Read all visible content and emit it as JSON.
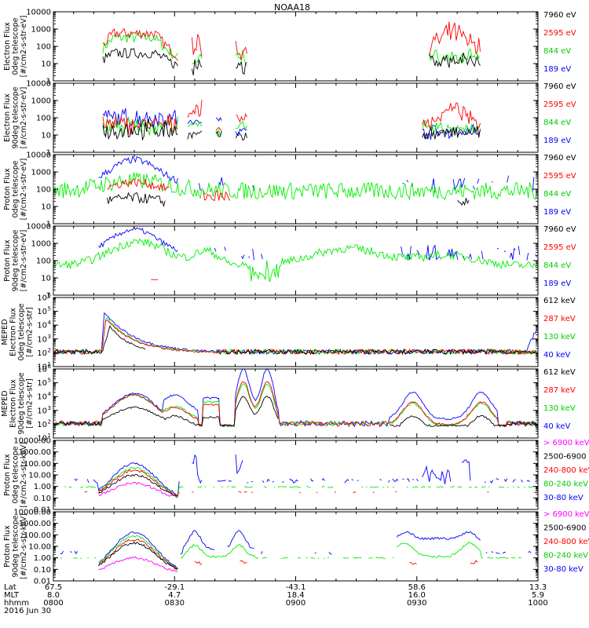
{
  "title": "NOAA18",
  "x_axis": {
    "rows": [
      {
        "label": "Lat",
        "values": [
          "67.5",
          "-29.1",
          "-43.1",
          "58.6",
          "13.3"
        ]
      },
      {
        "label": "MLT",
        "values": [
          "8.0",
          "4.7",
          "18.4",
          "16.0",
          "5.9"
        ]
      },
      {
        "label": "hhmm",
        "values": [
          "0800",
          "0830",
          "0900",
          "0930",
          "1000"
        ]
      }
    ],
    "date": "2016 Jun 30",
    "time_range_minutes": [
      0,
      120
    ],
    "major_ticks_minutes": [
      0,
      30,
      60,
      90,
      120
    ]
  },
  "colors": {
    "black": "#000000",
    "red": "#ff0000",
    "green": "#00ee00",
    "blue": "#0000ff",
    "magenta": "#ff00ff",
    "label_green": "#00cc00"
  },
  "chart_data": [
    {
      "type": "line",
      "ylabel": [
        "Electron Flux",
        "0deg telescope",
        "[#/cm2-s-str-eV]"
      ],
      "scale": "log",
      "ylim": [
        1,
        10000
      ],
      "ytick_labels": [
        "1",
        "10",
        "100",
        "1000",
        "10000"
      ],
      "legend_position": "right",
      "series": [
        {
          "name": "7960 eV",
          "color": "#000000"
        },
        {
          "name": "2595 eV",
          "color": "#ff0000"
        },
        {
          "name": "844 eV",
          "color": "#00ee00"
        },
        {
          "name": "189 eV",
          "color": "#0000ff"
        }
      ]
    },
    {
      "type": "line",
      "ylabel": [
        "Electron Flux",
        "90deg telescope",
        "[#/cm2-s-str-eV]"
      ],
      "scale": "log",
      "ylim": [
        1,
        10000
      ],
      "ytick_labels": [
        "1",
        "10",
        "100",
        "1000",
        "10000"
      ],
      "legend_position": "right",
      "series": [
        {
          "name": "7960 eV",
          "color": "#000000"
        },
        {
          "name": "2595 eV",
          "color": "#ff0000"
        },
        {
          "name": "844 eV",
          "color": "#00ee00"
        },
        {
          "name": "189 eV",
          "color": "#0000ff"
        }
      ]
    },
    {
      "type": "line",
      "ylabel": [
        "Proton Flux",
        "0deg telescope",
        "[#/cm2-s-str-eV]"
      ],
      "scale": "log",
      "ylim": [
        1,
        10000
      ],
      "ytick_labels": [
        "1",
        "10",
        "100",
        "1000",
        "10000"
      ],
      "legend_position": "right",
      "series": [
        {
          "name": "7960 eV",
          "color": "#000000"
        },
        {
          "name": "2595 eV",
          "color": "#ff0000"
        },
        {
          "name": "844 eV",
          "color": "#00ee00"
        },
        {
          "name": "189 eV",
          "color": "#0000ff"
        }
      ]
    },
    {
      "type": "line",
      "ylabel": [
        "Proton Flux",
        "90deg telescope",
        "[#/cm2-s-str-eV]"
      ],
      "scale": "log",
      "ylim": [
        1,
        10000
      ],
      "ytick_labels": [
        "1",
        "10",
        "100",
        "1000",
        "10000"
      ],
      "legend_position": "right",
      "series": [
        {
          "name": "7960 eV",
          "color": "#000000"
        },
        {
          "name": "2595 eV",
          "color": "#ff0000"
        },
        {
          "name": "844 eV",
          "color": "#00ee00"
        },
        {
          "name": "189 eV",
          "color": "#0000ff"
        }
      ]
    },
    {
      "type": "line",
      "ylabel": [
        "MEPED",
        "Electron Flux",
        "0deg telescope",
        "[#/cm2-s-str]"
      ],
      "scale": "log",
      "ylim": [
        10,
        1000000
      ],
      "ytick_labels": [
        "10",
        "10",
        "10",
        "10",
        "10",
        "10"
      ],
      "ytick_exponents": [
        "1",
        "2",
        "3",
        "4",
        "5",
        "6"
      ],
      "legend_position": "right",
      "series": [
        {
          "name": "612 keV",
          "color": "#000000"
        },
        {
          "name": "287 keV",
          "color": "#ff0000"
        },
        {
          "name": "130 keV",
          "color": "#00ee00"
        },
        {
          "name": "40 keV",
          "color": "#0000ff"
        }
      ]
    },
    {
      "type": "line",
      "ylabel": [
        "MEPED",
        "Electron Flux",
        "90deg telescope",
        "[#/cm2-s-str]"
      ],
      "scale": "log",
      "ylim": [
        10,
        1000000
      ],
      "ytick_labels": [
        "10",
        "10",
        "10",
        "10",
        "10",
        "10"
      ],
      "ytick_exponents": [
        "1",
        "2",
        "3",
        "4",
        "5",
        "6"
      ],
      "legend_position": "right",
      "series": [
        {
          "name": "612 keV",
          "color": "#000000"
        },
        {
          "name": "287 keV",
          "color": "#ff0000"
        },
        {
          "name": "130 keV",
          "color": "#00ee00"
        },
        {
          "name": "40 keV",
          "color": "#0000ff"
        }
      ]
    },
    {
      "type": "line",
      "ylabel": [
        "Proton Flux",
        "0deg telescope",
        "[#/cm2-s-str-keV]"
      ],
      "scale": "log",
      "ylim": [
        0.01,
        10000
      ],
      "ytick_labels": [
        "0.01",
        "0.10",
        "1.00",
        "10.00",
        "100.00",
        "1000.00",
        "10000.00"
      ],
      "legend_position": "right",
      "series": [
        {
          "name": "> 6900 keV",
          "color": "#ff00ff"
        },
        {
          "name": "2500-6900",
          "color": "#000000"
        },
        {
          "name": "240-800 keV",
          "color": "#ff0000"
        },
        {
          "name": "80-240 keV",
          "color": "#00ee00"
        },
        {
          "name": "30-80 keV",
          "color": "#0000ff"
        }
      ]
    },
    {
      "type": "line",
      "ylabel": [
        "Proton Flux",
        "90deg telescope",
        "[#/cm2-s-str-keV]"
      ],
      "scale": "log",
      "ylim": [
        0.01,
        10000
      ],
      "ytick_labels": [
        "0.01",
        "0.10",
        "1.00",
        "10.00",
        "100.00",
        "1000.00",
        "10000.00"
      ],
      "legend_position": "right",
      "series": [
        {
          "name": "> 6900 keV",
          "color": "#ff00ff"
        },
        {
          "name": "2500-6900",
          "color": "#000000"
        },
        {
          "name": "240-800 keV",
          "color": "#ff0000"
        },
        {
          "name": "80-240 keV",
          "color": "#00ee00"
        },
        {
          "name": "30-80 keV",
          "color": "#0000ff"
        }
      ]
    }
  ]
}
